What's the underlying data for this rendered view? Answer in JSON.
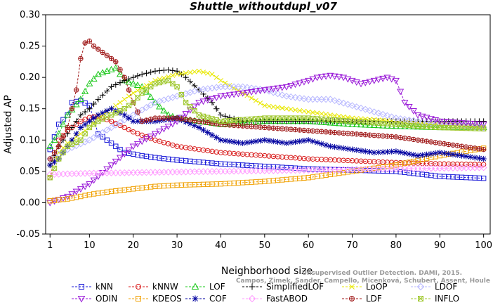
{
  "chart_data": {
    "type": "line",
    "title": "Shuttle_withoutdupl_v07",
    "xlabel": "Neighborhood size",
    "ylabel": "Adjusted AP",
    "xlim": [
      1,
      100
    ],
    "ylim": [
      -0.05,
      0.3
    ],
    "x_ticks": [
      "1",
      "10",
      "20",
      "30",
      "40",
      "50",
      "60",
      "70",
      "80",
      "90",
      "100"
    ],
    "y_ticks": [
      "-0.05",
      "0.00",
      "0.05",
      "0.10",
      "0.15",
      "0.20",
      "0.25",
      "0.30"
    ],
    "grid": false,
    "legend_position": "bottom",
    "credit": {
      "line1": "Unsupervised Outlier Detection. DAMI, 2015.",
      "line2": "Campos, Zimek, Sander, Campello, Micenková, Schubert, Assent, Houle"
    },
    "series": [
      {
        "name": "kNN",
        "color": "#1a1ad8",
        "marker": "square",
        "x": [
          1,
          3,
          5,
          6,
          8,
          10,
          12,
          15,
          18,
          22,
          25,
          30,
          40,
          50,
          60,
          70,
          80,
          90,
          100
        ],
        "y": [
          0.085,
          0.125,
          0.14,
          0.16,
          0.163,
          0.155,
          0.11,
          0.095,
          0.08,
          0.075,
          0.072,
          0.068,
          0.062,
          0.058,
          0.054,
          0.052,
          0.05,
          0.042,
          0.039
        ]
      },
      {
        "name": "kNNW",
        "color": "#d81a1a",
        "marker": "circle",
        "x": [
          1,
          3,
          5,
          8,
          10,
          12,
          15,
          18,
          20,
          25,
          30,
          40,
          50,
          60,
          70,
          80,
          90,
          100
        ],
        "y": [
          0.04,
          0.1,
          0.115,
          0.13,
          0.136,
          0.138,
          0.13,
          0.12,
          0.113,
          0.1,
          0.09,
          0.08,
          0.075,
          0.07,
          0.067,
          0.064,
          0.062,
          0.061
        ]
      },
      {
        "name": "LOF",
        "color": "#1ac81a",
        "marker": "triangle-up",
        "x": [
          1,
          3,
          5,
          8,
          10,
          12,
          14,
          16,
          18,
          20,
          22,
          25,
          28,
          30,
          35,
          40,
          50,
          60,
          70,
          80,
          90,
          100
        ],
        "y": [
          0.09,
          0.11,
          0.14,
          0.165,
          0.19,
          0.205,
          0.21,
          0.215,
          0.195,
          0.19,
          0.185,
          0.16,
          0.14,
          0.135,
          0.13,
          0.125,
          0.13,
          0.13,
          0.125,
          0.122,
          0.12,
          0.12
        ]
      },
      {
        "name": "SimplifiedLOF",
        "color": "#000000",
        "marker": "plus",
        "x": [
          1,
          3,
          5,
          8,
          10,
          12,
          15,
          18,
          20,
          22,
          25,
          28,
          30,
          32,
          35,
          38,
          40,
          45,
          50,
          60,
          70,
          80,
          90,
          100
        ],
        "y": [
          0.06,
          0.09,
          0.11,
          0.14,
          0.15,
          0.165,
          0.185,
          0.195,
          0.2,
          0.205,
          0.21,
          0.212,
          0.21,
          0.2,
          0.18,
          0.16,
          0.14,
          0.13,
          0.13,
          0.13,
          0.13,
          0.13,
          0.13,
          0.13
        ]
      },
      {
        "name": "LoOP",
        "color": "#e8e800",
        "marker": "cross",
        "x": [
          1,
          3,
          5,
          8,
          10,
          12,
          15,
          20,
          25,
          30,
          35,
          38,
          40,
          45,
          50,
          60,
          70,
          80,
          90,
          100
        ],
        "y": [
          0.06,
          0.08,
          0.095,
          0.11,
          0.12,
          0.135,
          0.15,
          0.175,
          0.195,
          0.205,
          0.21,
          0.205,
          0.195,
          0.175,
          0.155,
          0.145,
          0.135,
          0.13,
          0.125,
          0.12
        ]
      },
      {
        "name": "LDOF",
        "color": "#b8b8ff",
        "marker": "diamond",
        "x": [
          1,
          5,
          10,
          15,
          20,
          25,
          30,
          35,
          40,
          45,
          50,
          55,
          60,
          65,
          70,
          75,
          80,
          90,
          100
        ],
        "y": [
          0.07,
          0.085,
          0.1,
          0.12,
          0.14,
          0.16,
          0.17,
          0.18,
          0.185,
          0.185,
          0.18,
          0.17,
          0.165,
          0.165,
          0.155,
          0.145,
          0.135,
          0.125,
          0.12
        ]
      },
      {
        "name": "ODIN",
        "color": "#9a1ad8",
        "marker": "triangle-down",
        "x": [
          1,
          5,
          10,
          15,
          20,
          25,
          30,
          35,
          40,
          45,
          50,
          55,
          60,
          62,
          65,
          68,
          70,
          72,
          75,
          78,
          80,
          82,
          85,
          90,
          100
        ],
        "y": [
          0.0,
          0.01,
          0.03,
          0.06,
          0.09,
          0.11,
          0.13,
          0.16,
          0.17,
          0.175,
          0.18,
          0.185,
          0.195,
          0.2,
          0.203,
          0.2,
          0.195,
          0.19,
          0.195,
          0.2,
          0.195,
          0.16,
          0.14,
          0.13,
          0.125
        ]
      },
      {
        "name": "KDEOS",
        "color": "#f0a000",
        "marker": "square",
        "x": [
          1,
          5,
          8,
          10,
          15,
          20,
          25,
          30,
          40,
          50,
          60,
          70,
          80,
          90,
          100
        ],
        "y": [
          0.003,
          0.006,
          0.01,
          0.013,
          0.018,
          0.022,
          0.026,
          0.028,
          0.03,
          0.034,
          0.04,
          0.05,
          0.06,
          0.075,
          0.087
        ]
      },
      {
        "name": "COF",
        "color": "#0000a0",
        "marker": "asterisk",
        "x": [
          1,
          3,
          5,
          8,
          10,
          12,
          15,
          18,
          20,
          25,
          30,
          35,
          40,
          45,
          50,
          55,
          60,
          65,
          70,
          75,
          80,
          85,
          90,
          95,
          100
        ],
        "y": [
          0.06,
          0.07,
          0.09,
          0.12,
          0.13,
          0.14,
          0.15,
          0.14,
          0.13,
          0.13,
          0.135,
          0.12,
          0.1,
          0.095,
          0.1,
          0.095,
          0.1,
          0.09,
          0.085,
          0.08,
          0.082,
          0.075,
          0.08,
          0.075,
          0.07
        ]
      },
      {
        "name": "FastABOD",
        "color": "#ff9cff",
        "marker": "diamond",
        "x": [
          1,
          5,
          10,
          20,
          30,
          40,
          50,
          60,
          70,
          80,
          90,
          100
        ],
        "y": [
          0.045,
          0.046,
          0.047,
          0.048,
          0.049,
          0.05,
          0.051,
          0.052,
          0.053,
          0.054,
          0.055,
          0.056
        ]
      },
      {
        "name": "LDF",
        "color": "#a01a1a",
        "marker": "circle-plus",
        "x": [
          1,
          3,
          5,
          7,
          8,
          9,
          10,
          11,
          12,
          14,
          16,
          18,
          20,
          22,
          25,
          30,
          35,
          40,
          50,
          60,
          70,
          80,
          90,
          100
        ],
        "y": [
          0.07,
          0.09,
          0.12,
          0.18,
          0.23,
          0.255,
          0.258,
          0.25,
          0.245,
          0.235,
          0.225,
          0.2,
          0.16,
          0.13,
          0.135,
          0.135,
          0.13,
          0.125,
          0.12,
          0.115,
          0.11,
          0.105,
          0.095,
          0.085
        ]
      },
      {
        "name": "INFLO",
        "color": "#a0c830",
        "marker": "square-x",
        "x": [
          1,
          3,
          5,
          8,
          10,
          12,
          15,
          18,
          20,
          22,
          25,
          28,
          30,
          32,
          35,
          40,
          50,
          60,
          70,
          80,
          90,
          100
        ],
        "y": [
          0.04,
          0.07,
          0.09,
          0.1,
          0.12,
          0.13,
          0.14,
          0.15,
          0.16,
          0.175,
          0.19,
          0.195,
          0.185,
          0.16,
          0.14,
          0.13,
          0.135,
          0.135,
          0.13,
          0.125,
          0.12,
          0.118
        ]
      }
    ]
  }
}
